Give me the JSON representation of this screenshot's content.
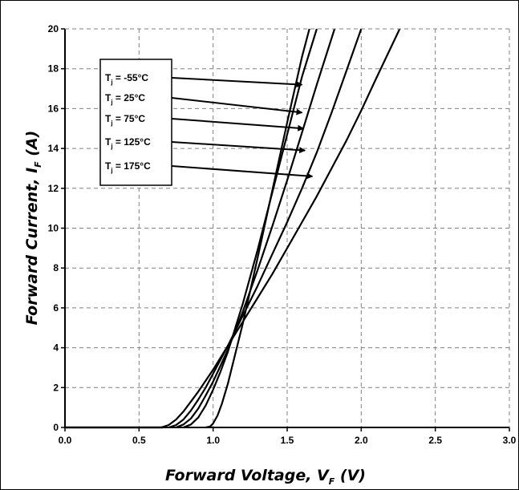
{
  "chart_data": {
    "type": "line",
    "title": "",
    "xlabel": {
      "main": "Forward Voltage, V",
      "sub": "F",
      "unit": " (V)"
    },
    "ylabel": {
      "main": "Forward Current, I",
      "sub": "F",
      "unit": " (A)"
    },
    "xlim": [
      0.0,
      3.0
    ],
    "ylim": [
      0,
      20
    ],
    "x_ticks": [
      "0.0",
      "0.5",
      "1.0",
      "1.5",
      "2.0",
      "2.5",
      "3.0"
    ],
    "y_ticks": [
      "0",
      "2",
      "4",
      "6",
      "8",
      "10",
      "12",
      "14",
      "16",
      "18",
      "20"
    ],
    "grid": true,
    "legend_position": "top-left",
    "series": [
      {
        "name": {
          "main": "T",
          "sub": "j",
          "rest": " = -55°C"
        },
        "x": [
          0.95,
          0.98,
          1.0,
          1.03,
          1.06,
          1.1,
          1.2,
          1.3,
          1.4,
          1.5,
          1.6,
          1.65
        ],
        "y": [
          0,
          0.05,
          0.2,
          0.6,
          1.2,
          2.2,
          5.2,
          8.5,
          11.9,
          15.3,
          18.6,
          20
        ]
      },
      {
        "name": {
          "main": "T",
          "sub": "j",
          "rest": " = 25°C"
        },
        "x": [
          0.8,
          0.85,
          0.9,
          0.95,
          1.0,
          1.05,
          1.1,
          1.2,
          1.3,
          1.4,
          1.5,
          1.6,
          1.7
        ],
        "y": [
          0,
          0.15,
          0.5,
          1.1,
          1.9,
          2.8,
          3.8,
          6.2,
          8.9,
          11.8,
          14.7,
          17.6,
          20
        ]
      },
      {
        "name": {
          "main": "T",
          "sub": "j",
          "rest": " = 75°C"
        },
        "x": [
          0.75,
          0.8,
          0.85,
          0.9,
          0.95,
          1.0,
          1.1,
          1.2,
          1.3,
          1.4,
          1.5,
          1.6,
          1.7,
          1.82
        ],
        "y": [
          0,
          0.15,
          0.45,
          0.95,
          1.6,
          2.3,
          3.9,
          5.8,
          7.9,
          10.1,
          12.4,
          14.8,
          17.2,
          20
        ]
      },
      {
        "name": {
          "main": "T",
          "sub": "j",
          "rest": " = 125°C"
        },
        "x": [
          0.7,
          0.75,
          0.8,
          0.85,
          0.9,
          0.95,
          1.0,
          1.1,
          1.2,
          1.3,
          1.4,
          1.5,
          1.6,
          1.7,
          1.8,
          1.9,
          2.0
        ],
        "y": [
          0,
          0.12,
          0.4,
          0.85,
          1.4,
          2.0,
          2.7,
          4.1,
          5.6,
          7.1,
          8.7,
          10.3,
          12.0,
          13.8,
          15.8,
          17.9,
          20
        ]
      },
      {
        "name": {
          "main": "T",
          "sub": "j",
          "rest": " = 175°C"
        },
        "x": [
          0.65,
          0.7,
          0.75,
          0.8,
          0.85,
          0.9,
          1.0,
          1.1,
          1.2,
          1.3,
          1.4,
          1.5,
          1.6,
          1.7,
          1.8,
          1.9,
          2.0,
          2.1,
          2.26
        ],
        "y": [
          0,
          0.12,
          0.4,
          0.8,
          1.3,
          1.8,
          2.9,
          4.1,
          5.3,
          6.5,
          7.7,
          9.0,
          10.3,
          11.6,
          13.0,
          14.4,
          15.9,
          17.5,
          20
        ]
      }
    ],
    "annotations": [
      {
        "series": 0,
        "target": [
          1.6,
          17.2
        ]
      },
      {
        "series": 1,
        "target": [
          1.6,
          15.8
        ]
      },
      {
        "series": 2,
        "target": [
          1.61,
          15.0
        ]
      },
      {
        "series": 3,
        "target": [
          1.62,
          13.9
        ]
      },
      {
        "series": 4,
        "target": [
          1.67,
          12.6
        ]
      }
    ],
    "colors": {
      "line": "#000000",
      "grid": "#808080",
      "background": "#ffffff"
    }
  }
}
